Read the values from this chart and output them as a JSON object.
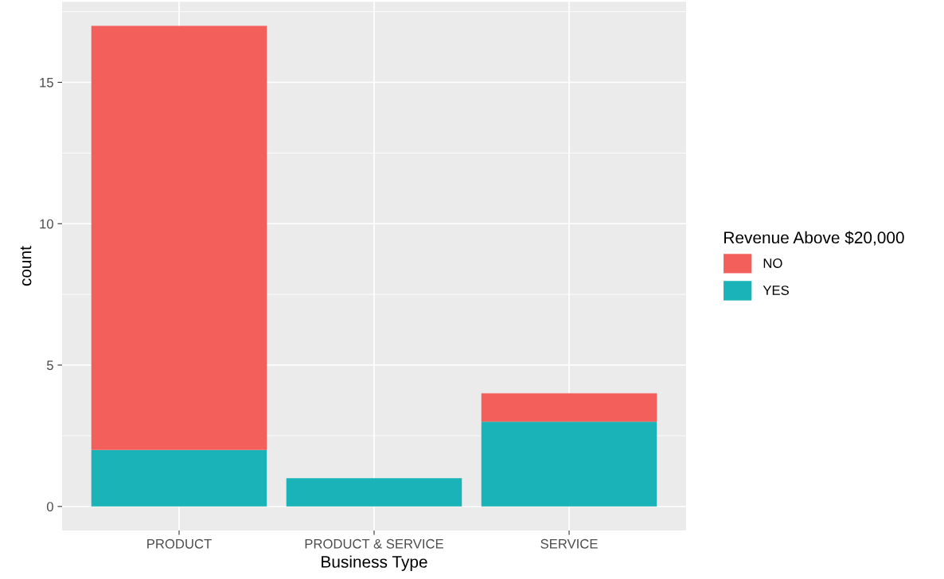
{
  "chart_data": {
    "type": "bar",
    "xlabel": "Business Type",
    "ylabel": "count",
    "legend_title": "Revenue Above $20,000",
    "categories": [
      "PRODUCT",
      "PRODUCT & SERVICE",
      "SERVICE"
    ],
    "stacked": true,
    "series": [
      {
        "name": "YES",
        "color": "#19b3b8",
        "values": [
          2,
          1,
          3
        ]
      },
      {
        "name": "NO",
        "color": "#f35f5b",
        "values": [
          15,
          0,
          1
        ]
      }
    ],
    "ylim": [
      -0.85,
      17.85
    ],
    "yticks": [
      0,
      5,
      10,
      15
    ],
    "grid": true,
    "legend": "right"
  }
}
